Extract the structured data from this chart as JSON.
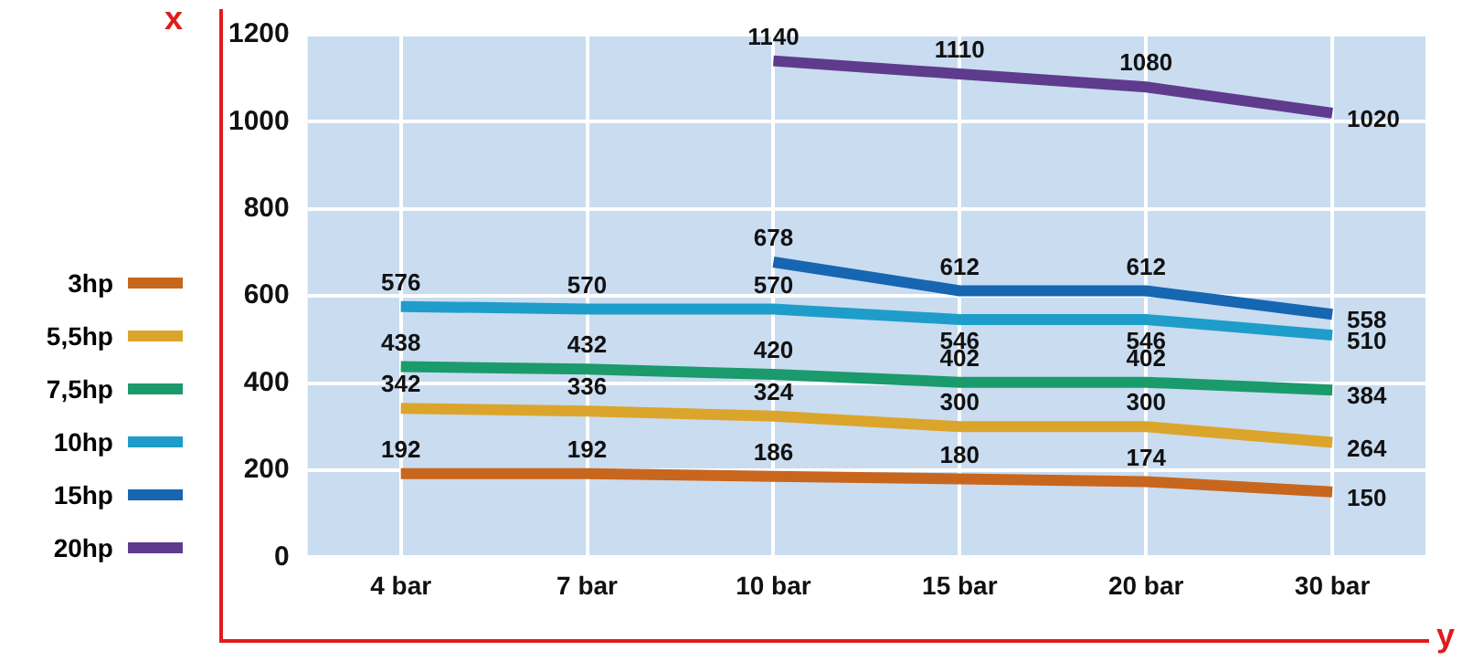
{
  "chart_data": {
    "type": "line",
    "xlabel": "y",
    "ylabel": "x",
    "categories": [
      "4 bar",
      "7 bar",
      "10 bar",
      "15 bar",
      "20 bar",
      "30 bar"
    ],
    "series": [
      {
        "name": "3hp",
        "color": "#c8661e",
        "values": [
          192,
          192,
          186,
          180,
          174,
          150
        ]
      },
      {
        "name": "5,5hp",
        "color": "#dba52c",
        "values": [
          342,
          336,
          324,
          300,
          300,
          264
        ]
      },
      {
        "name": "7,5hp",
        "color": "#1b9a6c",
        "values": [
          438,
          432,
          420,
          402,
          402,
          384
        ]
      },
      {
        "name": "10hp",
        "color": "#1e9dca",
        "values": [
          576,
          570,
          570,
          546,
          546,
          510
        ]
      },
      {
        "name": "15hp",
        "color": "#1666b2",
        "values": [
          null,
          null,
          678,
          612,
          612,
          558
        ]
      },
      {
        "name": "20hp",
        "color": "#5f3b8d",
        "values": [
          null,
          null,
          1140,
          1110,
          1080,
          1020
        ]
      }
    ],
    "ylim": [
      0,
      1200
    ],
    "yticks": [
      0,
      200,
      400,
      600,
      800,
      1000,
      1200
    ],
    "grid": true,
    "legend": "left",
    "marker": "none",
    "line_style": "solid",
    "data_labels": true
  }
}
